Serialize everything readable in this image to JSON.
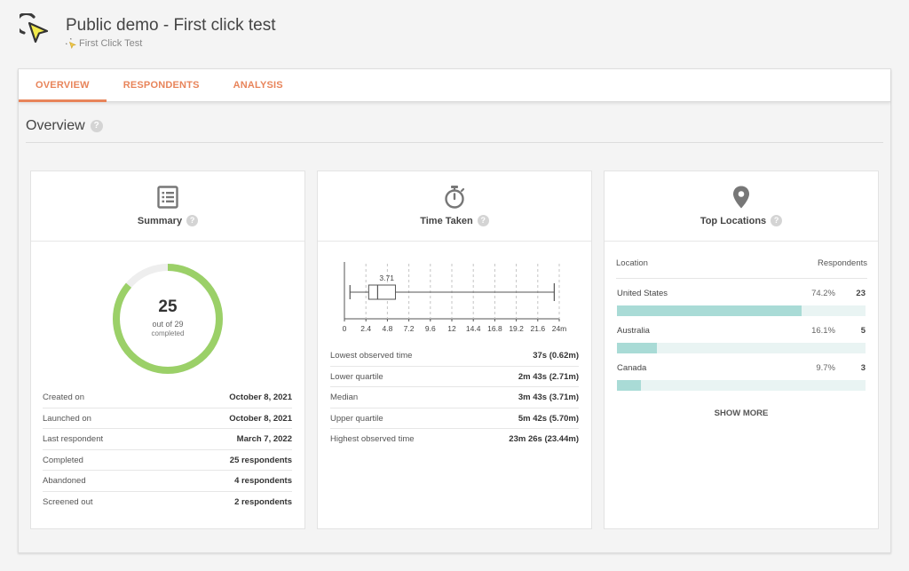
{
  "header": {
    "title": "Public demo - First click test",
    "subtitle": "First Click Test"
  },
  "tabs": [
    {
      "label": "OVERVIEW",
      "active": true
    },
    {
      "label": "RESPONDENTS",
      "active": false
    },
    {
      "label": "ANALYSIS",
      "active": false
    }
  ],
  "section": {
    "title": "Overview",
    "help": "?"
  },
  "summary": {
    "title": "Summary",
    "help": "?",
    "completed": 25,
    "total": 29,
    "ring_main": "25",
    "ring_sub": "out of 29",
    "ring_sub2": "completed",
    "ring_color": "#9bd068",
    "ring_track_color": "#eeeeee",
    "rows": [
      {
        "label": "Created on",
        "value": "October 8, 2021"
      },
      {
        "label": "Launched on",
        "value": "October 8, 2021"
      },
      {
        "label": "Last respondent",
        "value": "March 7, 2022"
      },
      {
        "label": "Completed",
        "value": "25 respondents"
      },
      {
        "label": "Abandoned",
        "value": "4 respondents"
      },
      {
        "label": "Screened out",
        "value": "2 respondents"
      }
    ]
  },
  "time_taken": {
    "title": "Time Taken",
    "help": "?",
    "chart_data": {
      "type": "boxplot",
      "axis_min": 0,
      "axis_max": 24,
      "ticks": [
        {
          "value": 0,
          "label": "0"
        },
        {
          "value": 2.4,
          "label": "2.4"
        },
        {
          "value": 4.8,
          "label": "4.8"
        },
        {
          "value": 7.2,
          "label": "7.2"
        },
        {
          "value": 9.6,
          "label": "9.6"
        },
        {
          "value": 12,
          "label": "12"
        },
        {
          "value": 14.4,
          "label": "14.4"
        },
        {
          "value": 16.8,
          "label": "16.8"
        },
        {
          "value": 19.2,
          "label": "19.2"
        },
        {
          "value": 21.6,
          "label": "21.6"
        },
        {
          "value": 24,
          "label": "24m"
        }
      ],
      "min": 0.62,
      "q1": 2.71,
      "median": 3.71,
      "q3": 5.7,
      "max": 23.44,
      "median_label": "3.71"
    },
    "rows": [
      {
        "label": "Lowest observed time",
        "value": "37s (0.62m)"
      },
      {
        "label": "Lower quartile",
        "value": "2m 43s (2.71m)"
      },
      {
        "label": "Median",
        "value": "3m 43s (3.71m)"
      },
      {
        "label": "Upper quartile",
        "value": "5m 42s (5.70m)"
      },
      {
        "label": "Highest observed time",
        "value": "23m 26s (23.44m)"
      }
    ]
  },
  "locations": {
    "title": "Top Locations",
    "help": "?",
    "col_location": "Location",
    "col_respondents": "Respondents",
    "bar_color": "#a9dbd6",
    "track_color": "#e9f4f3",
    "items": [
      {
        "name": "United States",
        "pct": "74.2%",
        "count": "23",
        "fraction": 0.742
      },
      {
        "name": "Australia",
        "pct": "16.1%",
        "count": "5",
        "fraction": 0.161
      },
      {
        "name": "Canada",
        "pct": "9.7%",
        "count": "3",
        "fraction": 0.097
      }
    ],
    "show_more": "SHOW MORE"
  }
}
